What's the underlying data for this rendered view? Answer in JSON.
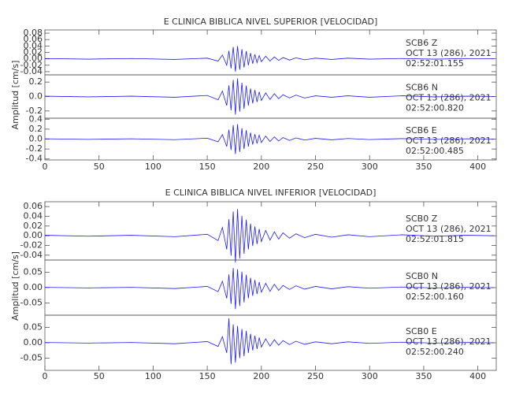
{
  "chart_data": [
    {
      "type": "line",
      "title": "E CLINICA BIBLICA NIVEL SUPERIOR [VELOCIDAD]",
      "ylabel": "Amplitud [cm/s]",
      "color": "#1a1aff",
      "xlim": [
        0,
        417
      ],
      "xticks": [
        0,
        50,
        100,
        150,
        200,
        250,
        300,
        350,
        400
      ],
      "x": [
        0,
        40,
        80,
        120,
        150,
        160,
        164,
        168,
        170,
        172,
        174,
        176,
        178,
        180,
        182,
        184,
        186,
        188,
        190,
        192,
        194,
        196,
        198,
        200,
        204,
        208,
        212,
        216,
        220,
        226,
        232,
        240,
        250,
        265,
        280,
        300,
        330,
        360,
        390,
        415
      ],
      "panels": [
        {
          "station": "SCB6   Z",
          "date": "OCT 13 (286), 2021",
          "time": "02:52:01.155",
          "ylim": [
            -0.05,
            0.09
          ],
          "yticks": [
            -0.04,
            -0.02,
            {
              "value": 0,
              "label": "0.00"
            },
            0.02,
            0.04,
            0.06,
            0.08
          ],
          "values": [
            0.001,
            -0.001,
            0.001,
            -0.002,
            0.002,
            -0.007,
            0.012,
            -0.02,
            0.025,
            -0.03,
            0.037,
            -0.04,
            0.04,
            -0.034,
            0.03,
            -0.027,
            0.024,
            -0.02,
            0.018,
            -0.015,
            0.014,
            -0.012,
            0.01,
            -0.009,
            0.008,
            -0.007,
            0.006,
            -0.005,
            0.004,
            -0.004,
            0.003,
            -0.003,
            0.002,
            -0.002,
            0.002,
            -0.001,
            0.001,
            -0.001,
            0.001,
            0
          ]
        },
        {
          "station": "SCB6   N",
          "date": "OCT 13 (286), 2021",
          "time": "02:52:00.820",
          "ylim": [
            -0.3,
            0.3
          ],
          "yticks": [
            -0.2,
            {
              "value": 0,
              "label": "0.0"
            },
            0.2
          ],
          "values": [
            0.005,
            -0.005,
            0.005,
            -0.01,
            0.015,
            -0.045,
            0.075,
            -0.125,
            0.155,
            -0.19,
            0.23,
            -0.25,
            0.25,
            -0.21,
            0.19,
            -0.17,
            0.15,
            -0.125,
            0.11,
            -0.095,
            0.09,
            -0.075,
            0.065,
            -0.055,
            0.05,
            -0.04,
            0.04,
            -0.03,
            0.025,
            -0.02,
            0.02,
            -0.02,
            0.01,
            -0.01,
            0.01,
            -0.01,
            0.01,
            -0.005,
            0.005,
            0
          ]
        },
        {
          "station": "SCB6   E",
          "date": "OCT 13 (286), 2021",
          "time": "02:52:00.485",
          "ylim": [
            -0.42,
            0.42
          ],
          "yticks": [
            -0.4,
            -0.2,
            {
              "value": 0,
              "label": "0.0"
            },
            0.2,
            0.4
          ],
          "values": [
            0.006,
            -0.006,
            0.006,
            -0.012,
            0.018,
            -0.054,
            0.09,
            -0.15,
            0.19,
            -0.22,
            0.28,
            -0.3,
            0.3,
            -0.26,
            0.22,
            -0.2,
            0.18,
            -0.15,
            0.13,
            -0.11,
            0.1,
            -0.09,
            0.08,
            -0.07,
            0.06,
            -0.05,
            0.045,
            -0.04,
            0.03,
            -0.027,
            0.024,
            -0.02,
            0.015,
            -0.015,
            0.012,
            -0.01,
            0.01,
            -0.006,
            0.006,
            0
          ]
        }
      ]
    },
    {
      "type": "line",
      "title": "E CLINICA BIBLICA NIVEL INFERIOR [VELOCIDAD]",
      "ylabel": "Amplitud [cm/s]",
      "color": "#1a1aff",
      "xlim": [
        0,
        417
      ],
      "xticks": [
        0,
        50,
        100,
        150,
        200,
        250,
        300,
        350,
        400
      ],
      "x": [
        0,
        40,
        80,
        120,
        150,
        160,
        164,
        168,
        170,
        172,
        174,
        176,
        178,
        180,
        182,
        184,
        186,
        188,
        190,
        192,
        194,
        196,
        198,
        200,
        204,
        208,
        212,
        216,
        220,
        226,
        232,
        240,
        250,
        265,
        280,
        300,
        330,
        360,
        390,
        415
      ],
      "panels": [
        {
          "station": "SCB0   Z",
          "date": "OCT 13 (286), 2021",
          "time": "02:52:01.815",
          "ylim": [
            -0.05,
            0.07
          ],
          "yticks": [
            -0.04,
            -0.02,
            {
              "value": 0,
              "label": "0.00"
            },
            0.02,
            0.04,
            0.06
          ],
          "values": [
            0.001,
            -0.001,
            0.001,
            -0.002,
            0.003,
            -0.01,
            0.017,
            -0.028,
            0.034,
            -0.041,
            0.05,
            -0.055,
            0.055,
            -0.047,
            0.041,
            -0.037,
            0.033,
            -0.028,
            0.025,
            -0.021,
            0.019,
            -0.017,
            0.014,
            -0.012,
            0.011,
            -0.009,
            0.008,
            -0.007,
            0.006,
            -0.005,
            0.004,
            -0.004,
            0.003,
            -0.003,
            0.002,
            -0.002,
            0.002,
            -0.001,
            0.001,
            0
          ]
        },
        {
          "station": "SCB0   N",
          "date": "OCT 13 (286), 2021",
          "time": "02:52:00.160",
          "ylim": [
            -0.09,
            0.09
          ],
          "yticks": [
            -0.05,
            {
              "value": 0,
              "label": "0.00"
            },
            0.05
          ],
          "values": [
            0.001,
            -0.001,
            0.001,
            -0.003,
            0.004,
            -0.013,
            0.021,
            -0.035,
            0.043,
            -0.053,
            0.064,
            -0.07,
            0.06,
            -0.06,
            0.052,
            -0.048,
            0.042,
            -0.035,
            0.032,
            -0.027,
            0.025,
            -0.021,
            0.018,
            -0.015,
            0.014,
            -0.012,
            0.011,
            -0.009,
            0.007,
            -0.006,
            0.006,
            -0.005,
            0.004,
            -0.004,
            0.003,
            -0.002,
            0.002,
            -0.001,
            0.001,
            0
          ]
        },
        {
          "station": "SCB0   E",
          "date": "OCT 13 (286), 2021",
          "time": "02:52:00.240",
          "ylim": [
            -0.09,
            0.09
          ],
          "yticks": [
            -0.05,
            {
              "value": 0,
              "label": "0.00"
            },
            0.05
          ],
          "values": [
            0.001,
            -0.001,
            0.001,
            -0.003,
            0.004,
            -0.012,
            0.02,
            -0.033,
            0.08,
            -0.07,
            0.06,
            -0.065,
            0.055,
            -0.05,
            0.045,
            -0.044,
            0.039,
            -0.033,
            0.029,
            -0.025,
            0.023,
            -0.02,
            0.017,
            -0.014,
            0.013,
            -0.011,
            0.01,
            -0.008,
            0.007,
            -0.006,
            0.005,
            -0.005,
            0.003,
            -0.003,
            0.003,
            -0.002,
            0.002,
            -0.001,
            0.001,
            0
          ]
        }
      ]
    }
  ]
}
